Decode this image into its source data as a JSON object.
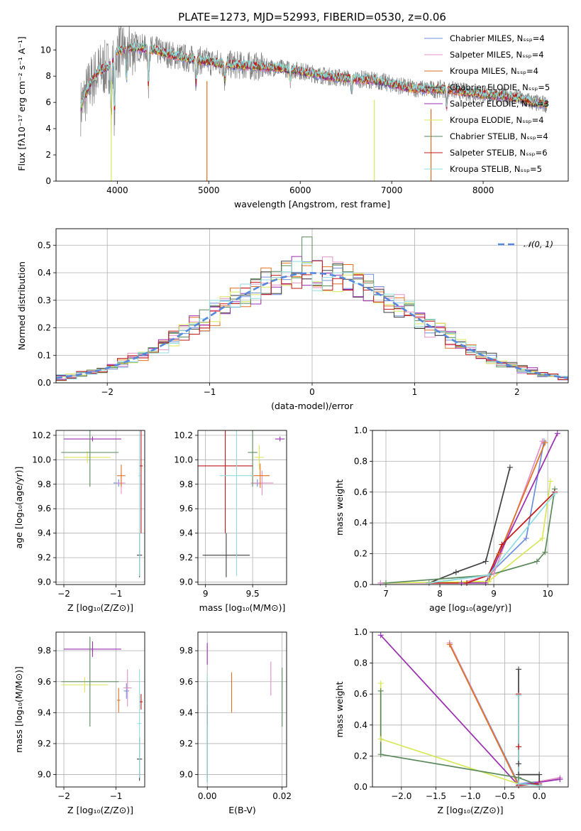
{
  "figure_title": "PLATE=1273, MJD=52993, FIBERID=0530, z=0.06",
  "model_colors": [
    "#6d8fdc",
    "#e38fc4",
    "#e07020",
    "#404040",
    "#9a2fb0",
    "#d8e85a",
    "#5a8a5a",
    "#c01818",
    "#8fdde0"
  ],
  "chart_data": [
    {
      "id": "spectrum",
      "type": "line",
      "xlabel": "wavelength [Angstrom, rest frame]",
      "ylabel": "Flux [fλ10⁻¹⁷ erg cm⁻² s⁻¹ A⁻¹]",
      "xlim": [
        3330,
        8930
      ],
      "ylim": [
        0,
        11.8
      ],
      "xticks": [
        4000,
        5000,
        6000,
        7000,
        8000
      ],
      "yticks": [
        0,
        2,
        4,
        6,
        8,
        10
      ],
      "grid": false,
      "legend_position": "top-right",
      "legend": [
        "Chabrier MILES, Nₛₛₚ=4",
        "Salpeter MILES, Nₛₛₚ=4",
        "Kroupa MILES, Nₛₛₚ=4",
        "Chabrier ELODIE, Nₛₛₚ=5",
        "Salpeter ELODIE, Nₛₛₚ=3",
        "Kroupa ELODIE, Nₛₛₚ=4",
        "Chabrier STELIB, Nₛₛₚ=4",
        "Salpeter STELIB, Nₛₛₚ=6",
        "Kroupa STELIB, Nₛₛₚ=5"
      ],
      "data_color": "#808080",
      "continuum": [
        [
          3600,
          5.6
        ],
        [
          3700,
          7.4
        ],
        [
          3800,
          8.4
        ],
        [
          3900,
          8.7
        ],
        [
          4000,
          9.9
        ],
        [
          4200,
          10.2
        ],
        [
          4400,
          10.0
        ],
        [
          4600,
          9.6
        ],
        [
          4800,
          9.3
        ],
        [
          5000,
          9.1
        ],
        [
          5200,
          8.9
        ],
        [
          5400,
          8.8
        ],
        [
          5600,
          8.7
        ],
        [
          5800,
          8.6
        ],
        [
          6000,
          8.4
        ],
        [
          6200,
          8.1
        ],
        [
          6400,
          7.9
        ],
        [
          6600,
          7.8
        ],
        [
          6800,
          7.7
        ],
        [
          7000,
          7.4
        ],
        [
          7200,
          7.1
        ],
        [
          7400,
          7.0
        ],
        [
          7600,
          7.0
        ],
        [
          7800,
          6.8
        ],
        [
          8000,
          6.6
        ],
        [
          8200,
          6.5
        ],
        [
          8400,
          6.3
        ],
        [
          8600,
          5.9
        ],
        [
          8700,
          5.9
        ]
      ],
      "absorption_lines": [
        [
          3934,
          4.8
        ],
        [
          3969,
          5.0
        ],
        [
          4102,
          7.6
        ],
        [
          4340,
          7.2
        ],
        [
          4861,
          7.4
        ],
        [
          5175,
          7.6
        ],
        [
          5890,
          7.6
        ],
        [
          6563,
          6.6
        ],
        [
          7600,
          5.6
        ]
      ],
      "dropout_lines": [
        [
          3934,
          0
        ],
        [
          4980,
          0
        ],
        [
          6810,
          0
        ],
        [
          7430,
          0
        ]
      ]
    },
    {
      "id": "residuals",
      "type": "histogram",
      "xlabel": "(data-model)/error",
      "ylabel": "Normed distribution",
      "xlim": [
        -2.5,
        2.5
      ],
      "ylim": [
        0,
        0.56
      ],
      "xticks": [
        -2,
        -1,
        0,
        1,
        2
      ],
      "yticks": [
        0.0,
        0.1,
        0.2,
        0.3,
        0.4,
        0.5
      ],
      "grid": true,
      "legend_position": "top-right",
      "legend": [
        "𝒩(0, 1)"
      ],
      "reference_curve": {
        "mean": 0,
        "sigma": 1,
        "color": "#5588dd"
      },
      "bin_width": 0.1,
      "peak_bin": {
        "x": -0.05,
        "y": 0.53
      }
    },
    {
      "id": "age-vs-z",
      "type": "scatter",
      "xlabel": "Z [log₁₀(Z/Z⊙)]",
      "ylabel": "age  [log₁₀(age/yr)]",
      "xlim": [
        -2.15,
        -0.45
      ],
      "ylim": [
        8.98,
        10.24
      ],
      "xticks": [
        -2,
        -1
      ],
      "xticklabels": [
        "−2",
        "−1"
      ],
      "yticks": [
        9.0,
        9.2,
        9.4,
        9.6,
        9.8,
        10.0,
        10.2
      ],
      "grid": true,
      "points": [
        {
          "c": 0,
          "x": -0.95,
          "y": 9.81,
          "ex": 0.1,
          "ey": 0.03
        },
        {
          "c": 1,
          "x": -0.9,
          "y": 9.81,
          "ex": 0.08,
          "ey": 0.09
        },
        {
          "c": 2,
          "x": -0.9,
          "y": 9.87,
          "ex": 0.08,
          "ey": 0.09
        },
        {
          "c": 3,
          "x": -0.55,
          "y": 9.22,
          "ex": 0.05,
          "ey": 0.18
        },
        {
          "c": 4,
          "x": -1.45,
          "y": 10.17,
          "ex": 0.55,
          "ey": 0.02
        },
        {
          "c": 5,
          "x": -1.55,
          "y": 10.02,
          "ex": 0.45,
          "ey": 0.05
        },
        {
          "c": 6,
          "x": -1.5,
          "y": 10.06,
          "ex": 0.55,
          "ey": 0.28
        },
        {
          "c": 7,
          "x": -0.52,
          "y": 9.95,
          "ex": 0.03,
          "ey": 0.55
        },
        {
          "c": 8,
          "x": -0.55,
          "y": 9.87,
          "ex": 0.02,
          "ey": 0.82
        }
      ]
    },
    {
      "id": "age-vs-mass",
      "type": "scatter",
      "xlabel": "mass [log₁₀(M/M⊙)]",
      "ylabel": "",
      "xlim": [
        8.92,
        9.86
      ],
      "ylim": [
        8.98,
        10.24
      ],
      "xticks": [
        9.0,
        9.5
      ],
      "yticks": [
        9.0,
        9.2,
        9.4,
        9.6,
        9.8,
        10.0,
        10.2
      ],
      "grid": true,
      "points": [
        {
          "c": 0,
          "x": 9.55,
          "y": 9.81,
          "ex": 0.06,
          "ey": 0.03
        },
        {
          "c": 1,
          "x": 9.6,
          "y": 9.81,
          "ex": 0.12,
          "ey": 0.1
        },
        {
          "c": 2,
          "x": 9.58,
          "y": 9.87,
          "ex": 0.1,
          "ey": 0.1
        },
        {
          "c": 3,
          "x": 9.22,
          "y": 9.22,
          "ex": 0.25,
          "ey": 0.18
        },
        {
          "c": 4,
          "x": 9.79,
          "y": 10.17,
          "ex": 0.05,
          "ey": 0.02
        },
        {
          "c": 5,
          "x": 9.57,
          "y": 10.02,
          "ex": 0.05,
          "ey": 0.1
        },
        {
          "c": 6,
          "x": 9.5,
          "y": 10.06,
          "ex": 0.05,
          "ey": 0.28
        },
        {
          "c": 7,
          "x": 9.21,
          "y": 9.95,
          "ex": 0.29,
          "ey": 0.55
        },
        {
          "c": 8,
          "x": 9.33,
          "y": 9.87,
          "ex": 0.18,
          "ey": 0.82
        }
      ]
    },
    {
      "id": "weight-vs-age",
      "type": "line",
      "xlabel": "age  [log₁₀(age/yr)]",
      "ylabel": "mass weight",
      "xlim": [
        6.75,
        10.38
      ],
      "ylim": [
        0,
        1.0
      ],
      "xticks": [
        7,
        8,
        9,
        10
      ],
      "yticks": [
        0.0,
        0.2,
        0.4,
        0.6,
        0.8,
        1.0
      ],
      "grid": true,
      "series": [
        {
          "c": 0,
          "x": [
            6.9,
            7.8,
            8.9,
            9.6,
            9.93
          ],
          "y": [
            0.01,
            0.01,
            0.06,
            0.3,
            0.93
          ]
        },
        {
          "c": 1,
          "x": [
            6.9,
            8.4,
            9.0,
            9.9
          ],
          "y": [
            0.01,
            0.01,
            0.07,
            0.93
          ]
        },
        {
          "c": 2,
          "x": [
            7.8,
            8.9,
            9.1,
            9.95
          ],
          "y": [
            0.01,
            0.02,
            0.2,
            0.92
          ]
        },
        {
          "c": 3,
          "x": [
            7.8,
            8.3,
            8.85,
            9.3
          ],
          "y": [
            0.01,
            0.08,
            0.15,
            0.76
          ]
        },
        {
          "c": 4,
          "x": [
            8.4,
            8.85,
            10.18
          ],
          "y": [
            0.01,
            0.01,
            0.98
          ]
        },
        {
          "c": 5,
          "x": [
            7.0,
            8.9,
            9.9,
            10.05
          ],
          "y": [
            0.01,
            0.02,
            0.3,
            0.67
          ]
        },
        {
          "c": 6,
          "x": [
            7.0,
            8.9,
            9.8,
            9.95,
            10.13
          ],
          "y": [
            0.01,
            0.06,
            0.15,
            0.21,
            0.62
          ]
        },
        {
          "c": 7,
          "x": [
            7.8,
            8.5,
            8.9,
            9.15,
            10.13
          ],
          "y": [
            0.01,
            0.01,
            0.06,
            0.26,
            0.6
          ]
        },
        {
          "c": 8,
          "x": [
            7.8,
            8.9,
            10.13
          ],
          "y": [
            0.01,
            0.06,
            0.59
          ]
        }
      ]
    },
    {
      "id": "mass-vs-z",
      "type": "scatter",
      "xlabel": "Z [log₁₀(Z/Z⊙)]",
      "ylabel": "mass [log₁₀(M/M⊙)]",
      "xlim": [
        -2.15,
        -0.45
      ],
      "ylim": [
        8.92,
        9.92
      ],
      "xticks": [
        -2,
        -1
      ],
      "xticklabels": [
        "−2",
        "−1"
      ],
      "yticks": [
        9.0,
        9.2,
        9.4,
        9.6,
        9.8
      ],
      "grid": true,
      "points": [
        {
          "c": 0,
          "x": -0.8,
          "y": 9.54,
          "ex": 0.05,
          "ey": 0.05
        },
        {
          "c": 1,
          "x": -0.78,
          "y": 9.56,
          "ex": 0.08,
          "ey": 0.12
        },
        {
          "c": 2,
          "x": -0.95,
          "y": 9.48,
          "ex": 0.03,
          "ey": 0.08
        },
        {
          "c": 3,
          "x": -0.55,
          "y": 9.1,
          "ex": 0.05,
          "ey": 0.14
        },
        {
          "c": 4,
          "x": -1.45,
          "y": 9.81,
          "ex": 0.55,
          "ey": 0.05
        },
        {
          "c": 5,
          "x": -1.6,
          "y": 9.58,
          "ex": 0.45,
          "ey": 0.05
        },
        {
          "c": 6,
          "x": -1.5,
          "y": 9.6,
          "ex": 0.55,
          "ey": 0.29
        },
        {
          "c": 7,
          "x": -0.52,
          "y": 9.47,
          "ex": 0.03,
          "ey": 0.05
        },
        {
          "c": 8,
          "x": -0.55,
          "y": 9.33,
          "ex": 0.04,
          "ey": 0.35
        }
      ]
    },
    {
      "id": "mass-vs-ebv",
      "type": "scatter",
      "xlabel": "E(B-V)",
      "ylabel": "",
      "xlim": [
        -0.0025,
        0.0212
      ],
      "ylim": [
        8.92,
        9.92
      ],
      "xticks": [
        0.0,
        0.02
      ],
      "xticklabels": [
        "0.00",
        "0.02"
      ],
      "yticks": [
        9.0,
        9.2,
        9.4,
        9.6,
        9.8
      ],
      "grid": true,
      "points": [
        {
          "c": 0,
          "x": 0.0,
          "y": 9.53,
          "ey": 0.05
        },
        {
          "c": 1,
          "x": 0.017,
          "y": 9.62,
          "ey": 0.11
        },
        {
          "c": 2,
          "x": 0.0065,
          "y": 9.53,
          "ey": 0.13
        },
        {
          "c": 3,
          "x": 0.0,
          "y": 9.2,
          "ey": 0.25
        },
        {
          "c": 4,
          "x": 0.0,
          "y": 9.78,
          "ey": 0.07
        },
        {
          "c": 5,
          "x": 0.0,
          "y": 9.6,
          "ey": 0.05
        },
        {
          "c": 6,
          "x": 0.02,
          "y": 9.5,
          "ey": 0.19
        },
        {
          "c": 7,
          "x": 0.0,
          "y": 9.46,
          "ey": 0.14
        },
        {
          "c": 8,
          "x": 0.0,
          "y": 9.3,
          "ey": 0.35
        }
      ]
    },
    {
      "id": "weight-vs-z",
      "type": "line",
      "xlabel": "Z [log₁₀(Z/Z⊙)]",
      "ylabel": "mass weight",
      "xlim": [
        -2.42,
        0.42
      ],
      "ylim": [
        0,
        1.0
      ],
      "xticks": [
        -2.0,
        -1.5,
        -1.0,
        -0.5,
        0.0
      ],
      "xticklabels": [
        "−2.0",
        "−1.5",
        "−1.0",
        "−0.5",
        "0.0"
      ],
      "yticks": [
        0.0,
        0.2,
        0.4,
        0.6,
        0.8,
        1.0
      ],
      "grid": true,
      "series": [
        {
          "c": 0,
          "x": [
            -1.3,
            -0.3,
            0.3
          ],
          "y": [
            0.93,
            0.02,
            0.05
          ]
        },
        {
          "c": 1,
          "x": [
            -1.3,
            -0.3,
            0.3
          ],
          "y": [
            0.93,
            0.01,
            0.06
          ]
        },
        {
          "c": 2,
          "x": [
            -1.3,
            -0.3
          ],
          "y": [
            0.92,
            0.01
          ]
        },
        {
          "c": 3,
          "x": [
            -0.3,
            -0.3,
            -0.3,
            0.0,
            0.0
          ],
          "y": [
            0.76,
            0.15,
            0.08,
            0.08,
            0.01
          ]
        },
        {
          "c": 4,
          "x": [
            -2.3,
            -0.3,
            0.3
          ],
          "y": [
            0.98,
            0.01,
            0.05
          ]
        },
        {
          "c": 5,
          "x": [
            -2.3,
            -2.3,
            -0.3
          ],
          "y": [
            0.67,
            0.31,
            0.02
          ]
        },
        {
          "c": 6,
          "x": [
            -2.3,
            -2.3,
            -0.3,
            0.0
          ],
          "y": [
            0.62,
            0.21,
            0.06,
            0.01
          ]
        },
        {
          "c": 7,
          "x": [
            -0.3,
            -0.3,
            -0.3,
            0.0
          ],
          "y": [
            0.6,
            0.26,
            0.01,
            0.02
          ]
        },
        {
          "c": 8,
          "x": [
            -0.3,
            -0.3,
            0.0
          ],
          "y": [
            0.59,
            0.02,
            0.01
          ]
        }
      ]
    }
  ]
}
